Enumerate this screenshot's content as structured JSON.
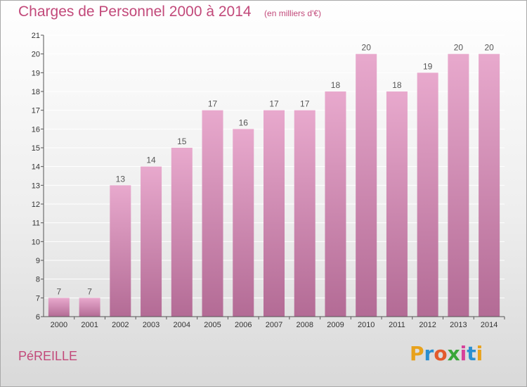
{
  "header": {
    "title": "Charges de Personnel 2000 à 2014",
    "subtitle": "(en milliers d'€)"
  },
  "footer": {
    "city": "PéREILLE",
    "logo_text": "Proxiti",
    "logo_colors": [
      "#e8a21c",
      "#2a8fd0",
      "#e35a2c",
      "#3aa63a",
      "#d6409a",
      "#2a8fd0",
      "#e8a21c"
    ]
  },
  "colors": {
    "bar_top": "#e8a9cd",
    "bar_bottom": "#b36b95",
    "accent": "#c2497a"
  },
  "chart_data": {
    "type": "bar",
    "title": "Charges de Personnel 2000 à 2014",
    "subtitle": "(en milliers d'€)",
    "xlabel": "",
    "ylabel": "",
    "categories": [
      "2000",
      "2001",
      "2002",
      "2003",
      "2004",
      "2005",
      "2006",
      "2007",
      "2008",
      "2009",
      "2010",
      "2011",
      "2012",
      "2013",
      "2014"
    ],
    "values": [
      7,
      7,
      13,
      14,
      15,
      17,
      16,
      17,
      17,
      18,
      20,
      18,
      19,
      20,
      20
    ],
    "ylim": [
      6,
      21
    ],
    "yticks": [
      6,
      7,
      8,
      9,
      10,
      11,
      12,
      13,
      14,
      15,
      16,
      17,
      18,
      19,
      20,
      21
    ],
    "grid": true
  }
}
